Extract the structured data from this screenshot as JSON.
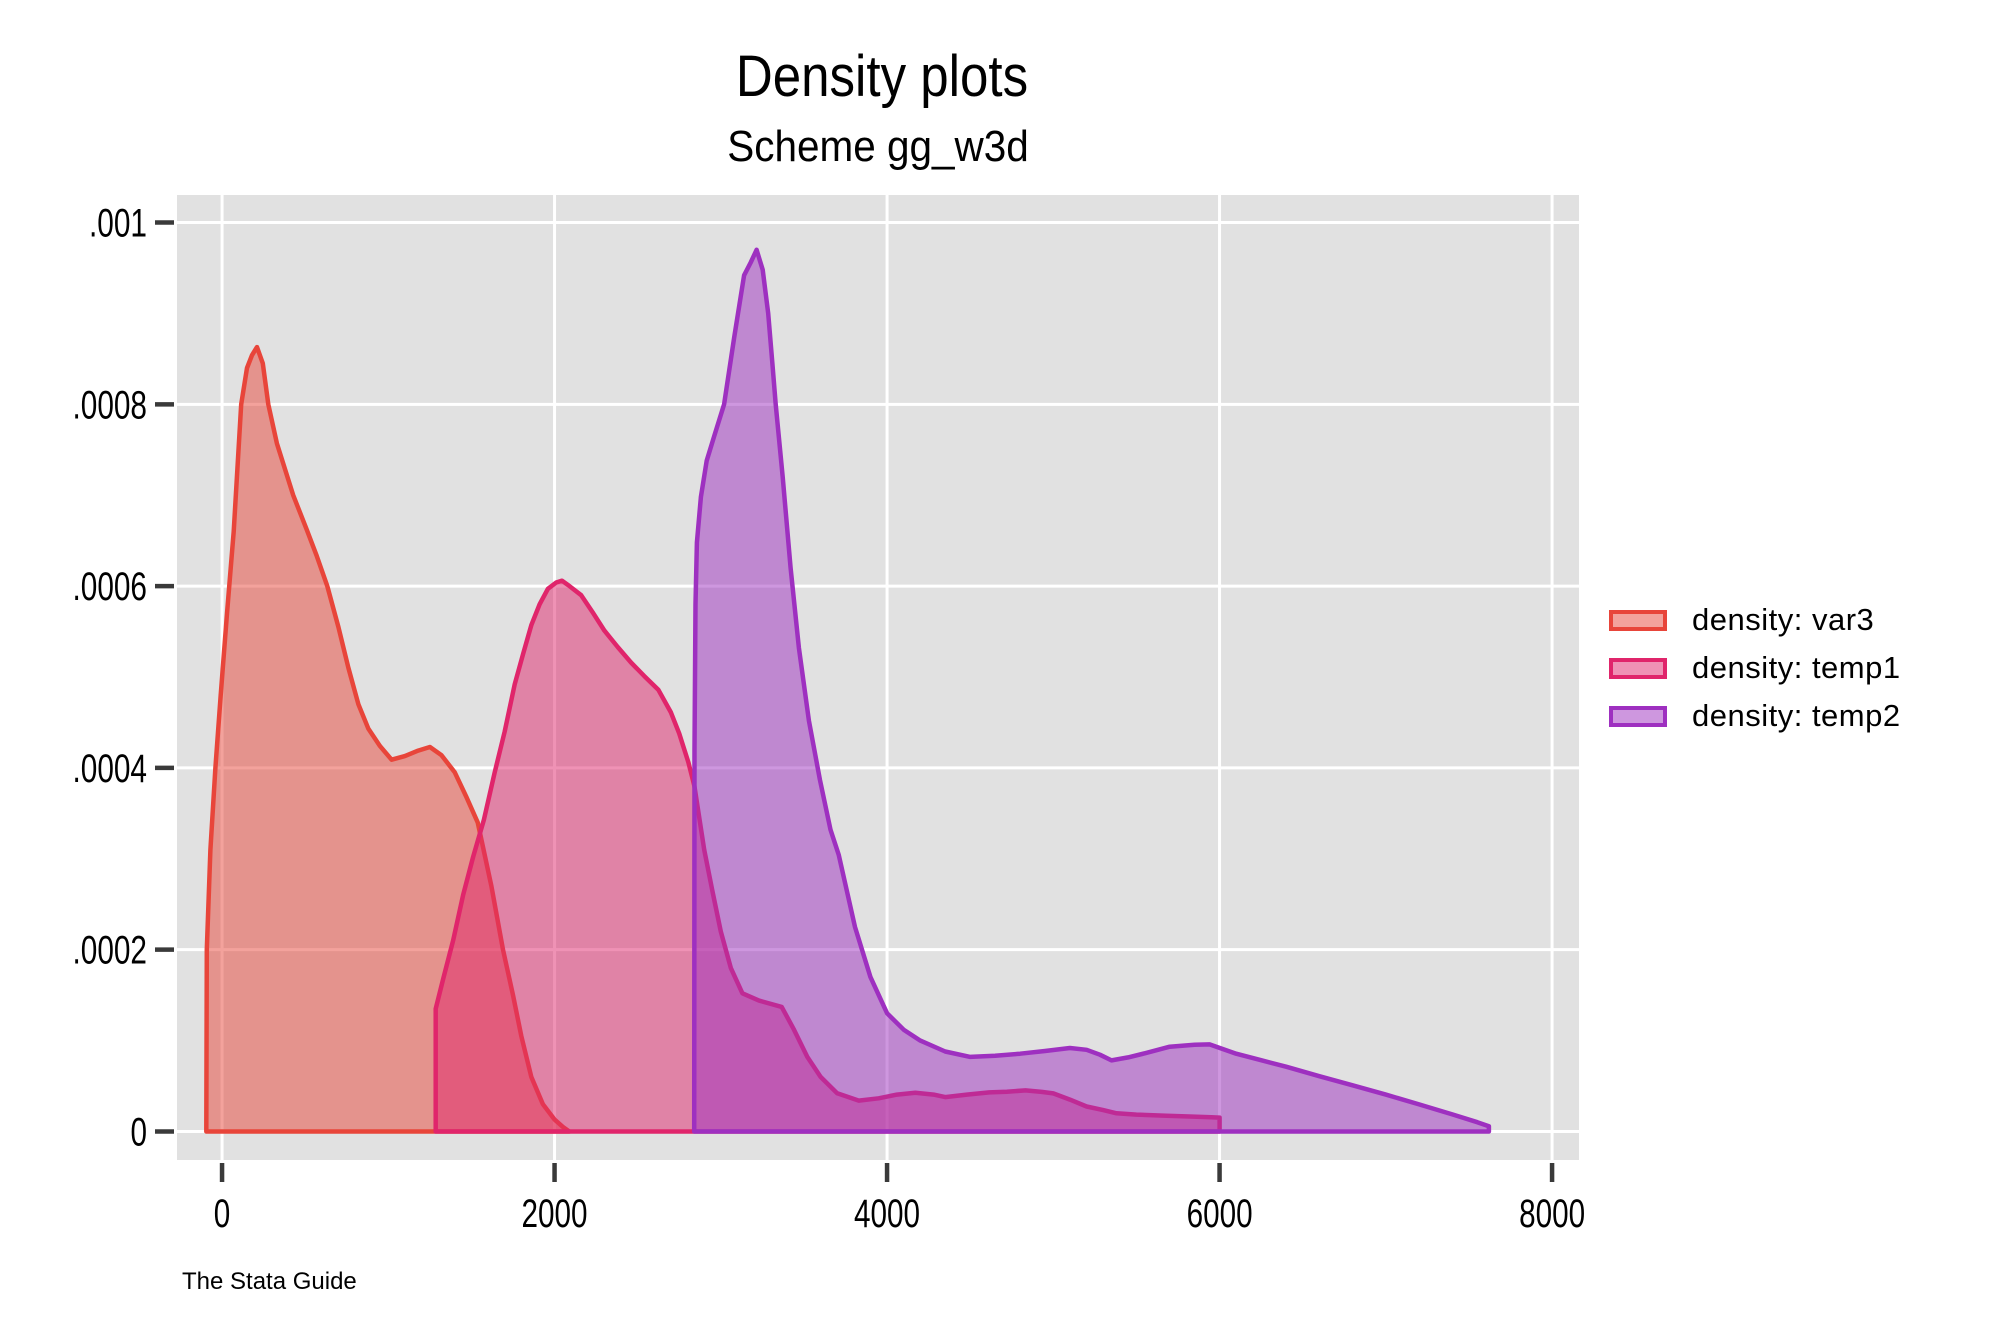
{
  "title": "Density plots",
  "subtitle": "Scheme gg_w3d",
  "caption": "The Stata Guide",
  "legend": {
    "position": "right-outside",
    "items": [
      {
        "label": "density: var3",
        "color": "#e8453a"
      },
      {
        "label": "density: temp1",
        "color": "#e0256b"
      },
      {
        "label": "density: temp2",
        "color": "#9e30c0"
      }
    ]
  },
  "axes": {
    "x": {
      "ticks": [
        {
          "label": "0",
          "value": 0
        },
        {
          "label": "2000",
          "value": 2000
        },
        {
          "label": "4000",
          "value": 4000
        },
        {
          "label": "6000",
          "value": 6000
        },
        {
          "label": "8000",
          "value": 8000
        }
      ]
    },
    "y": {
      "ticks": [
        {
          "label": "0",
          "value": 0
        },
        {
          "label": ".0002",
          "value": 0.0002
        },
        {
          "label": ".0004",
          "value": 0.0004
        },
        {
          "label": ".0006",
          "value": 0.0006
        },
        {
          "label": ".0008",
          "value": 0.0008
        },
        {
          "label": ".001",
          "value": 0.001
        }
      ]
    }
  },
  "chart_data": {
    "type": "area",
    "title": "Density plots",
    "subtitle": "Scheme gg_w3d",
    "xlabel": "",
    "ylabel": "",
    "xlim": [
      -271,
      8162
    ],
    "ylim": [
      -3.14e-05,
      0.0010303
    ],
    "x_ticks": [
      0,
      2000,
      4000,
      6000,
      8000
    ],
    "y_ticks": [
      0,
      0.0002,
      0.0004,
      0.0006,
      0.0008,
      0.001
    ],
    "grid": true,
    "plot_background": "#e1e1e1",
    "gridline_color": "#ffffff",
    "legend_position": "right-outside",
    "fill_opacity": 0.5,
    "series": [
      {
        "name": "density: var3",
        "line_color": "#e8453a",
        "points": [
          [
            -95,
            0
          ],
          [
            -92,
            0.0002
          ],
          [
            -70,
            0.00031
          ],
          [
            -40,
            0.0004
          ],
          [
            -8,
            0.00048
          ],
          [
            30,
            0.00057
          ],
          [
            70,
            0.00066
          ],
          [
            115,
            0.0008
          ],
          [
            150,
            0.00084
          ],
          [
            180,
            0.000854
          ],
          [
            210,
            0.000863
          ],
          [
            245,
            0.000845
          ],
          [
            278,
            0.0008
          ],
          [
            330,
            0.000757
          ],
          [
            428,
            0.0007
          ],
          [
            510,
            0.000662
          ],
          [
            570,
            0.000633
          ],
          [
            633,
            0.0006
          ],
          [
            700,
            0.000555
          ],
          [
            760,
            0.00051
          ],
          [
            820,
            0.00047
          ],
          [
            880,
            0.000443
          ],
          [
            950,
            0.000424
          ],
          [
            1020,
            0.000409
          ],
          [
            1100,
            0.000413
          ],
          [
            1180,
            0.000419
          ],
          [
            1250,
            0.000423
          ],
          [
            1320,
            0.000414
          ],
          [
            1400,
            0.000395
          ],
          [
            1470,
            0.000368
          ],
          [
            1538,
            0.00034
          ],
          [
            1620,
            0.00027
          ],
          [
            1690,
            0.0002
          ],
          [
            1750,
            0.00015
          ],
          [
            1800,
            0.000105
          ],
          [
            1860,
            6e-05
          ],
          [
            1930,
            3e-05
          ],
          [
            2000,
            1.3e-05
          ],
          [
            2050,
            5e-06
          ],
          [
            2088,
            0
          ]
        ]
      },
      {
        "name": "density: temp1",
        "line_color": "#e0256b",
        "points": [
          [
            1285,
            0
          ],
          [
            1285,
            0.000135
          ],
          [
            1330,
            0.000168
          ],
          [
            1390,
            0.00021
          ],
          [
            1450,
            0.00026
          ],
          [
            1510,
            0.000302
          ],
          [
            1575,
            0.000343
          ],
          [
            1640,
            0.000395
          ],
          [
            1700,
            0.00044
          ],
          [
            1760,
            0.000492
          ],
          [
            1810,
            0.000525
          ],
          [
            1860,
            0.000557
          ],
          [
            1910,
            0.00058
          ],
          [
            1960,
            0.000597
          ],
          [
            2010,
            0.000604
          ],
          [
            2045,
            0.000606
          ],
          [
            2090,
            0.0006
          ],
          [
            2160,
            0.00059
          ],
          [
            2230,
            0.000571
          ],
          [
            2300,
            0.000551
          ],
          [
            2380,
            0.000533
          ],
          [
            2460,
            0.000516
          ],
          [
            2540,
            0.000501
          ],
          [
            2624,
            0.000486
          ],
          [
            2700,
            0.000461
          ],
          [
            2750,
            0.000438
          ],
          [
            2805,
            0.000406
          ],
          [
            2841,
            0.00038
          ],
          [
            2900,
            0.00031
          ],
          [
            2950,
            0.000264
          ],
          [
            3000,
            0.00022
          ],
          [
            3060,
            0.00018
          ],
          [
            3130,
            0.000152
          ],
          [
            3230,
            0.000144
          ],
          [
            3366,
            0.000137
          ],
          [
            3440,
            0.000112
          ],
          [
            3520,
            8.2e-05
          ],
          [
            3600,
            6e-05
          ],
          [
            3700,
            4.2e-05
          ],
          [
            3830,
            3.4e-05
          ],
          [
            3950,
            3.65e-05
          ],
          [
            4060,
            4.05e-05
          ],
          [
            4170,
            4.25e-05
          ],
          [
            4280,
            4.05e-05
          ],
          [
            4350,
            3.78e-05
          ],
          [
            4480,
            4.05e-05
          ],
          [
            4615,
            4.3e-05
          ],
          [
            4720,
            4.37e-05
          ],
          [
            4833,
            4.52e-05
          ],
          [
            4930,
            4.35e-05
          ],
          [
            5000,
            4.19e-05
          ],
          [
            5100,
            3.5e-05
          ],
          [
            5200,
            2.75e-05
          ],
          [
            5300,
            2.35e-05
          ],
          [
            5380,
            2e-05
          ],
          [
            5500,
            1.85e-05
          ],
          [
            5680,
            1.72e-05
          ],
          [
            5820,
            1.65e-05
          ],
          [
            5950,
            1.56e-05
          ],
          [
            6000,
            1.52e-05
          ],
          [
            6000,
            0
          ]
        ]
      },
      {
        "name": "density: temp2",
        "line_color": "#9e30c0",
        "points": [
          [
            2840,
            0
          ],
          [
            2842,
            0.00042
          ],
          [
            2848,
            0.00058
          ],
          [
            2856,
            0.000648
          ],
          [
            2880,
            0.000698
          ],
          [
            2915,
            0.000738
          ],
          [
            2960,
            0.000765
          ],
          [
            3020,
            0.0008
          ],
          [
            3080,
            0.000873
          ],
          [
            3140,
            0.000942
          ],
          [
            3180,
            0.000956
          ],
          [
            3215,
            0.00097
          ],
          [
            3252,
            0.000948
          ],
          [
            3285,
            0.0009
          ],
          [
            3310,
            0.000846
          ],
          [
            3330,
            0.0008
          ],
          [
            3372,
            0.00072
          ],
          [
            3420,
            0.00062
          ],
          [
            3470,
            0.000532
          ],
          [
            3530,
            0.000452
          ],
          [
            3596,
            0.000387
          ],
          [
            3660,
            0.000332
          ],
          [
            3710,
            0.000304
          ],
          [
            3807,
            0.000225
          ],
          [
            3900,
            0.00017
          ],
          [
            4000,
            0.00013
          ],
          [
            4100,
            0.000112
          ],
          [
            4200,
            0.0001
          ],
          [
            4350,
            8.8e-05
          ],
          [
            4500,
            8.2e-05
          ],
          [
            4650,
            8.32e-05
          ],
          [
            4800,
            8.55e-05
          ],
          [
            4950,
            8.85e-05
          ],
          [
            5100,
            9.18e-05
          ],
          [
            5200,
            8.98e-05
          ],
          [
            5280,
            8.45e-05
          ],
          [
            5350,
            7.82e-05
          ],
          [
            5450,
            8.15e-05
          ],
          [
            5550,
            8.6e-05
          ],
          [
            5700,
            9.33e-05
          ],
          [
            5850,
            9.55e-05
          ],
          [
            5940,
            9.58e-05
          ],
          [
            6100,
            8.55e-05
          ],
          [
            6250,
            7.84e-05
          ],
          [
            6400,
            7.12e-05
          ],
          [
            6600,
            6.08e-05
          ],
          [
            6800,
            5.08e-05
          ],
          [
            7000,
            4.05e-05
          ],
          [
            7200,
            2.98e-05
          ],
          [
            7400,
            1.88e-05
          ],
          [
            7550,
            1.02e-05
          ],
          [
            7620,
            5.8e-06
          ],
          [
            7620,
            0
          ]
        ]
      }
    ]
  }
}
